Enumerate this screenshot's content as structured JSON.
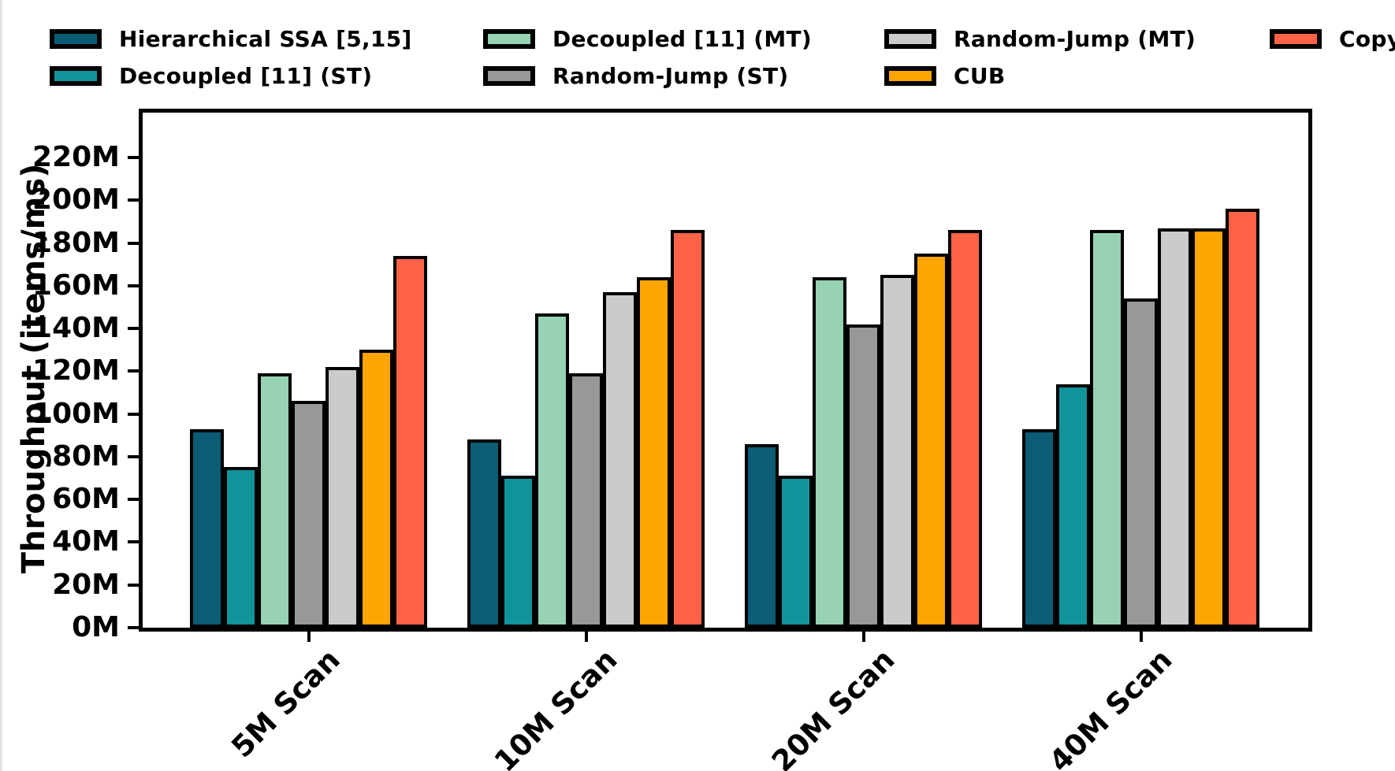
{
  "chart_data": {
    "type": "bar",
    "title": "",
    "xlabel": "",
    "ylabel": "Throughput (items/ms)",
    "unit": "M",
    "categories": [
      "5M Scan",
      "10M Scan",
      "20M Scan",
      "40M Scan"
    ],
    "series": [
      {
        "name": "Hierarchical SSA [5,15]",
        "color": "#0b5c74",
        "values": [
          93,
          88,
          86,
          93
        ]
      },
      {
        "name": "Decoupled [11] (ST)",
        "color": "#10949b",
        "values": [
          75,
          71,
          71,
          114
        ]
      },
      {
        "name": "Decoupled [11] (MT)",
        "color": "#97d2b4",
        "values": [
          119,
          147,
          164,
          186
        ]
      },
      {
        "name": "Random-Jump (ST)",
        "color": "#989898",
        "values": [
          106,
          119,
          142,
          154
        ]
      },
      {
        "name": "Random-Jump (MT)",
        "color": "#cbcbcb",
        "values": [
          122,
          157,
          165,
          187
        ]
      },
      {
        "name": "CUB",
        "color": "#ffa502",
        "values": [
          130,
          164,
          175,
          187
        ]
      },
      {
        "name": "Copy",
        "color": "#ff6347",
        "values": [
          174,
          186,
          186,
          196
        ]
      }
    ],
    "ylim": [
      0,
      241
    ],
    "yticks": [
      0,
      20,
      40,
      60,
      80,
      100,
      120,
      140,
      160,
      180,
      200,
      220
    ],
    "ytick_labels": [
      "0M",
      "20M",
      "40M",
      "60M",
      "80M",
      "100M",
      "120M",
      "140M",
      "160M",
      "180M",
      "200M",
      "220M"
    ],
    "legend_position": "top",
    "legend_columns": [
      [
        0,
        1
      ],
      [
        2,
        3
      ],
      [
        4,
        5
      ],
      [
        6
      ]
    ],
    "grid": false,
    "bar_edge_color": "#000000",
    "axis_color": "#000000",
    "background_color": "#ffffff"
  }
}
